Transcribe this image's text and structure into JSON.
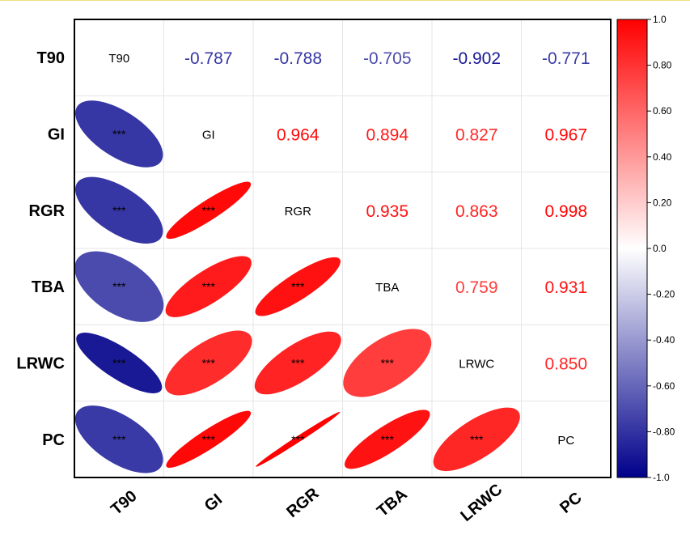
{
  "chart_data": {
    "type": "heatmap",
    "variables": [
      "T90",
      "GI",
      "RGR",
      "TBA",
      "LRWC",
      "PC"
    ],
    "correlations": [
      [
        1.0,
        -0.787,
        -0.788,
        -0.705,
        -0.902,
        -0.771
      ],
      [
        -0.787,
        1.0,
        0.964,
        0.894,
        0.827,
        0.967
      ],
      [
        -0.788,
        0.964,
        1.0,
        0.935,
        0.863,
        0.998
      ],
      [
        -0.705,
        0.894,
        0.935,
        1.0,
        0.759,
        0.931
      ],
      [
        -0.902,
        0.827,
        0.863,
        0.759,
        1.0,
        0.85
      ],
      [
        -0.771,
        0.967,
        0.998,
        0.931,
        0.85,
        1.0
      ]
    ],
    "upper_labels": [
      [
        "-0.787",
        "-0.788",
        "-0.705",
        "-0.902",
        "-0.771"
      ],
      [
        "0.964",
        "0.894",
        "0.827",
        "0.967"
      ],
      [
        "0.935",
        "0.863",
        "0.998"
      ],
      [
        "0.759",
        "0.931"
      ],
      [
        "0.850"
      ]
    ],
    "significance": "***",
    "lower_triangle": "ellipse",
    "upper_triangle": "number",
    "colorbar": {
      "min": -1.0,
      "max": 1.0,
      "ticks": [
        "1.0",
        "0.80",
        "0.60",
        "0.40",
        "0.20",
        "0.0",
        "-0.20",
        "-0.40",
        "-0.60",
        "-0.80",
        "-1.0"
      ],
      "tick_values": [
        1.0,
        0.8,
        0.6,
        0.4,
        0.2,
        0.0,
        -0.2,
        -0.4,
        -0.6,
        -0.8,
        -1.0
      ],
      "colors": {
        "low": "#00008b",
        "mid": "#ffffff",
        "high": "#ff0000"
      }
    },
    "grid": true
  }
}
